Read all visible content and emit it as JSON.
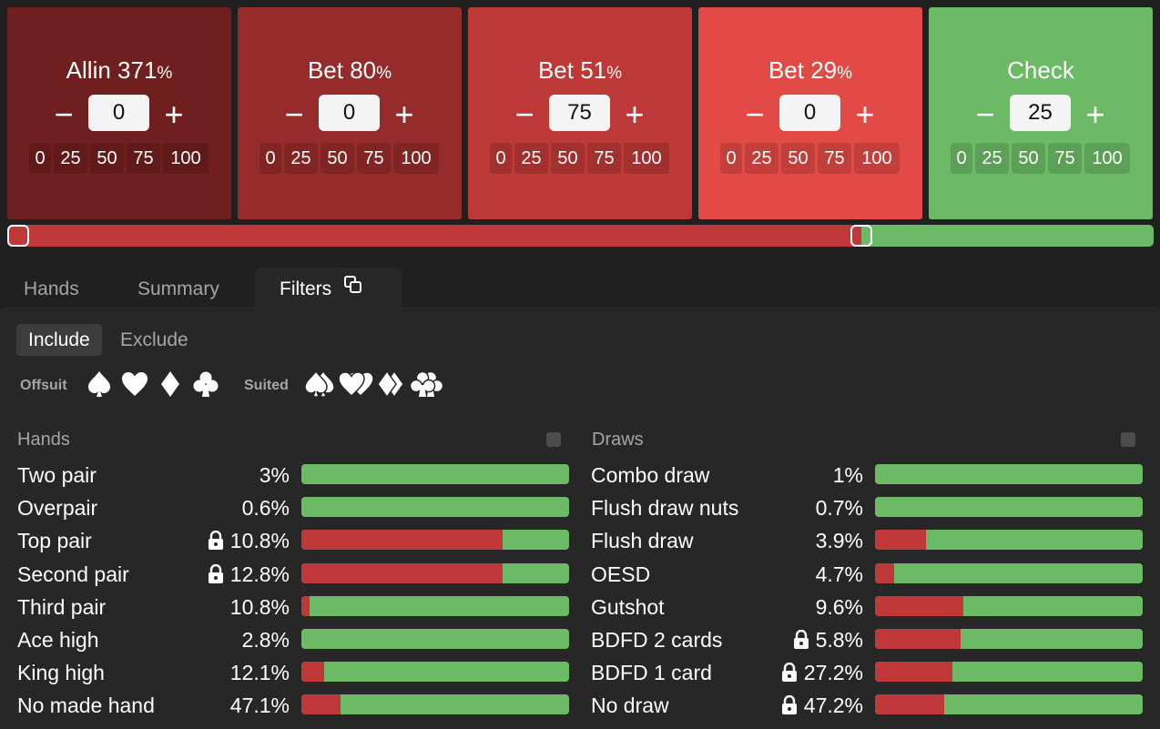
{
  "colors": {
    "allin": "#6f1f1e",
    "bet80": "#952b2a",
    "bet51": "#bc3937",
    "bet29": "#e24a46",
    "check": "#6cba66",
    "bar_red": "#c0393a",
    "bar_green": "#6cba66"
  },
  "actions": [
    {
      "name": "Allin 371",
      "pct_sign": "%",
      "value": "0",
      "minus": "−",
      "plus": "+",
      "presets": [
        "0",
        "25",
        "50",
        "75",
        "100"
      ]
    },
    {
      "name": "Bet 80",
      "pct_sign": "%",
      "value": "0",
      "minus": "−",
      "plus": "+",
      "presets": [
        "0",
        "25",
        "50",
        "75",
        "100"
      ]
    },
    {
      "name": "Bet 51",
      "pct_sign": "%",
      "value": "75",
      "minus": "−",
      "plus": "+",
      "presets": [
        "0",
        "25",
        "50",
        "75",
        "100"
      ]
    },
    {
      "name": "Bet 29",
      "pct_sign": "%",
      "value": "0",
      "minus": "−",
      "plus": "+",
      "presets": [
        "0",
        "25",
        "50",
        "75",
        "100"
      ]
    },
    {
      "name": "Check",
      "pct_sign": "",
      "value": "25",
      "minus": "−",
      "plus": "+",
      "presets": [
        "0",
        "25",
        "50",
        "75",
        "100"
      ]
    }
  ],
  "distribution": {
    "red_fraction": 0.745,
    "green_fraction": 0.255
  },
  "tabs": [
    "Hands",
    "Summary",
    "Filters"
  ],
  "active_tab": "Filters",
  "filter_mode": {
    "include": "Include",
    "exclude": "Exclude",
    "active": "Include"
  },
  "suits": {
    "offsuit_label": "Offsuit",
    "suited_label": "Suited",
    "icons": [
      "spade-icon",
      "heart-icon",
      "diamond-icon",
      "club-icon"
    ]
  },
  "hands": {
    "title": "Hands",
    "rows": [
      {
        "label": "Two pair",
        "pct": "3%",
        "locked": false,
        "red_fraction": 0.0
      },
      {
        "label": "Overpair",
        "pct": "0.6%",
        "locked": false,
        "red_fraction": 0.0
      },
      {
        "label": "Top pair",
        "pct": "10.8%",
        "locked": true,
        "red_fraction": 0.75
      },
      {
        "label": "Second pair",
        "pct": "12.8%",
        "locked": true,
        "red_fraction": 0.75
      },
      {
        "label": "Third pair",
        "pct": "10.8%",
        "locked": false,
        "red_fraction": 0.03
      },
      {
        "label": "Ace high",
        "pct": "2.8%",
        "locked": false,
        "red_fraction": 0.0
      },
      {
        "label": "King high",
        "pct": "12.1%",
        "locked": false,
        "red_fraction": 0.085
      },
      {
        "label": "No made hand",
        "pct": "47.1%",
        "locked": false,
        "red_fraction": 0.145
      }
    ]
  },
  "draws": {
    "title": "Draws",
    "rows": [
      {
        "label": "Combo draw",
        "pct": "1%",
        "locked": false,
        "red_fraction": 0.0
      },
      {
        "label": "Flush draw nuts",
        "pct": "0.7%",
        "locked": false,
        "red_fraction": 0.0
      },
      {
        "label": "Flush draw",
        "pct": "3.9%",
        "locked": false,
        "red_fraction": 0.19
      },
      {
        "label": "OESD",
        "pct": "4.7%",
        "locked": false,
        "red_fraction": 0.07
      },
      {
        "label": "Gutshot",
        "pct": "9.6%",
        "locked": false,
        "red_fraction": 0.33
      },
      {
        "label": "BDFD 2 cards",
        "pct": "5.8%",
        "locked": true,
        "red_fraction": 0.32
      },
      {
        "label": "BDFD 1 card",
        "pct": "27.2%",
        "locked": true,
        "red_fraction": 0.29
      },
      {
        "label": "No draw",
        "pct": "47.2%",
        "locked": true,
        "red_fraction": 0.26
      }
    ]
  }
}
